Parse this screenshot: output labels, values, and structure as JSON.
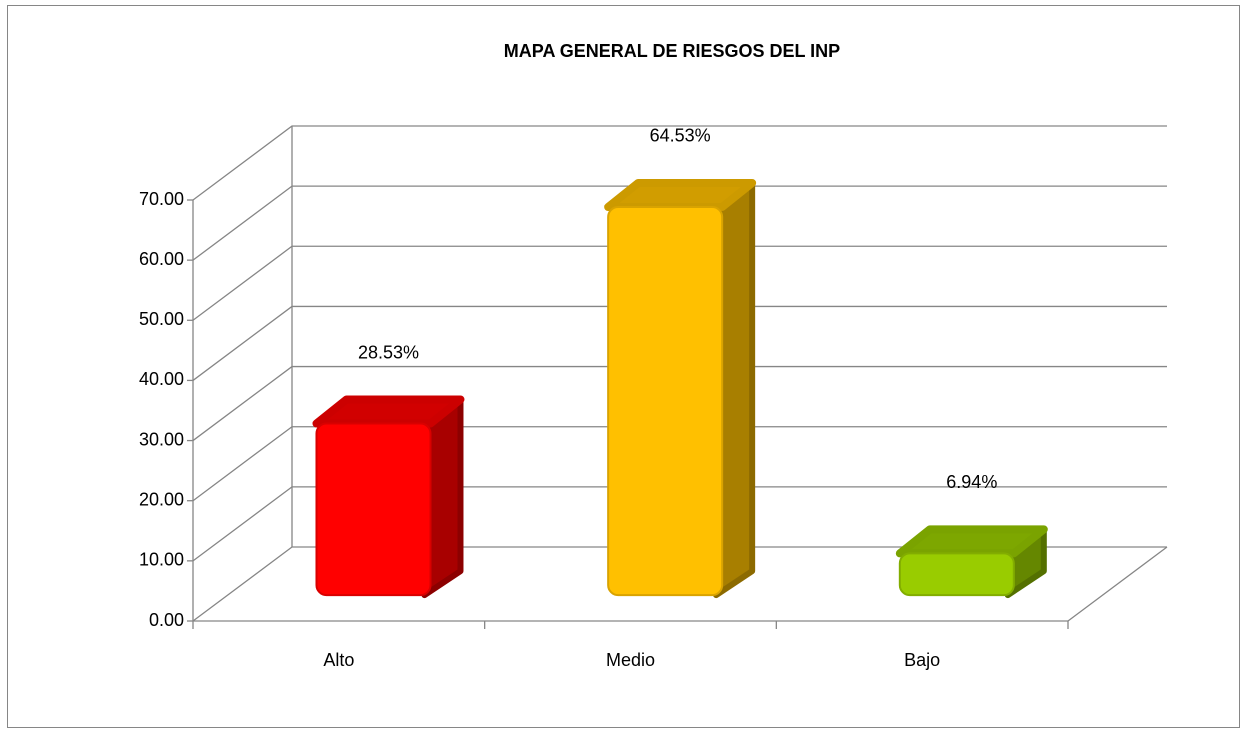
{
  "chart_data": {
    "type": "bar3d",
    "title": "MAPA GENERAL DE RIESGOS DEL INP",
    "categories": [
      "Alto",
      "Medio",
      "Bajo"
    ],
    "values": [
      28.53,
      64.53,
      6.94
    ],
    "value_labels": [
      "28.53%",
      "64.53%",
      "6.94%"
    ],
    "colors": [
      "#ff0000",
      "#ffc000",
      "#99cc00"
    ],
    "ylim": [
      0,
      70
    ],
    "yticks": [
      {
        "value": 0,
        "label": "0.00"
      },
      {
        "value": 10,
        "label": "10.00"
      },
      {
        "value": 20,
        "label": "20.00"
      },
      {
        "value": 30,
        "label": "30.00"
      },
      {
        "value": 40,
        "label": "40.00"
      },
      {
        "value": 50,
        "label": "50.00"
      },
      {
        "value": 60,
        "label": "60.00"
      },
      {
        "value": 70,
        "label": "70.00"
      }
    ],
    "grid": true
  }
}
